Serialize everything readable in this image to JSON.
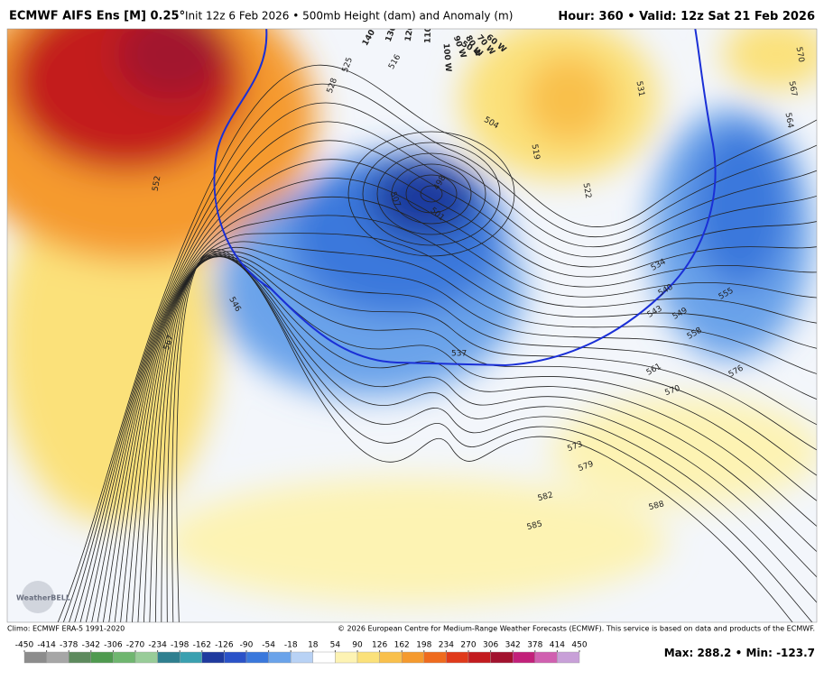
{
  "header": {
    "title": "ECMWF AIFS Ens [M] 0.25°",
    "subtitle": "Init 12z 6 Feb 2026 • 500mb Height (dam) and Anomaly (m)",
    "hour_label": "Hour:",
    "hour": "360",
    "separator": "•",
    "valid_label": "Valid:",
    "valid": "12z Sat 21 Feb 2026"
  },
  "map": {
    "longitude_labels": [
      "140 W",
      "130 W",
      "120 W",
      "110 W",
      "100 W",
      "90 W",
      "80 W",
      "70 W",
      "60 W",
      "50 W"
    ],
    "contour_labels": [
      552,
      567,
      528,
      525,
      516,
      504,
      507,
      498,
      501,
      519,
      522,
      531,
      570,
      567,
      564,
      534,
      540,
      543,
      549,
      555,
      558,
      561,
      576,
      570,
      573,
      579,
      582,
      585,
      588,
      537,
      546
    ],
    "logo": "WeatherBELL"
  },
  "footer": {
    "climo": "Climo: ECMWF ERA-5 1991-2020",
    "copyright": "© 2026 European Centre for Medium-Range Weather Forecasts (ECMWF). This service is based on data and products of the ECMWF.",
    "max_label": "Max:",
    "max": 288.2,
    "min_label": "Min:",
    "min": -123.7
  },
  "colorbar": {
    "ticks": [
      -450,
      -414,
      -378,
      -342,
      -306,
      -270,
      -234,
      -198,
      -162,
      -126,
      -90,
      -54,
      -18,
      18,
      54,
      90,
      126,
      162,
      198,
      234,
      270,
      306,
      342,
      378,
      414,
      450
    ],
    "colors": [
      "#8c8c8c",
      "#a6a6a6",
      "#5d8a5d",
      "#4f9a4f",
      "#6fb66f",
      "#98cc98",
      "#2f7f8f",
      "#3aa0b0",
      "#1f3a9e",
      "#2a52c8",
      "#3a78dc",
      "#6aa3ea",
      "#b8d2f5",
      "#ffffff",
      "#fdf3b3",
      "#fbe17a",
      "#f9c04c",
      "#f59a2e",
      "#ef6b1e",
      "#e03a1a",
      "#c31b1f",
      "#a2122e",
      "#c2207a",
      "#d060b0",
      "#c8a0d8"
    ]
  }
}
